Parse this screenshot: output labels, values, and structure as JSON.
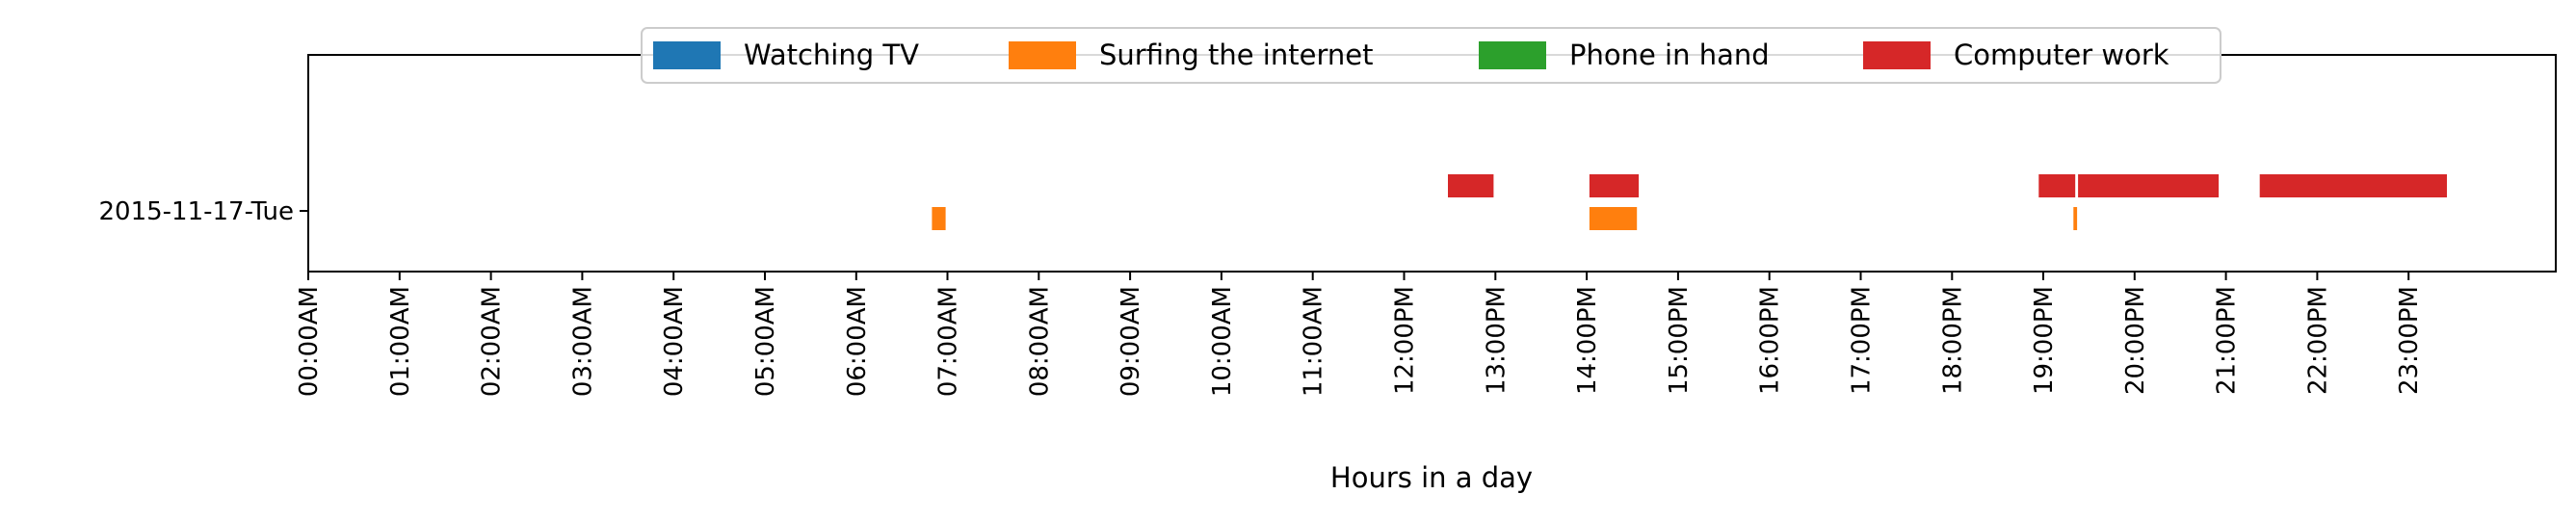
{
  "chart_data": {
    "type": "timeline",
    "title": "",
    "xlabel": "Hours in a day",
    "ylabel": "",
    "xlim": [
      0,
      24
    ],
    "grid": false,
    "legend_position": "top-center",
    "x_ticks": [
      "00:00AM",
      "01:00AM",
      "02:00AM",
      "03:00AM",
      "04:00AM",
      "05:00AM",
      "06:00AM",
      "07:00AM",
      "08:00AM",
      "09:00AM",
      "10:00AM",
      "11:00AM",
      "12:00PM",
      "13:00PM",
      "14:00PM",
      "15:00PM",
      "16:00PM",
      "17:00PM",
      "18:00PM",
      "19:00PM",
      "20:00PM",
      "21:00PM",
      "22:00PM",
      "23:00PM"
    ],
    "rows": [
      "2015-11-17-Tue"
    ],
    "series": [
      {
        "name": "Watching TV",
        "color": "#1f77b4",
        "intervals": []
      },
      {
        "name": "Surfing the internet",
        "color": "#ff7f0e",
        "intervals": [
          [
            6.83,
            6.98
          ],
          [
            14.03,
            14.55
          ],
          [
            19.33,
            19.37
          ]
        ]
      },
      {
        "name": "Phone in hand",
        "color": "#2ca02c",
        "intervals": []
      },
      {
        "name": "Computer work",
        "color": "#d62728",
        "intervals": [
          [
            12.48,
            12.98
          ],
          [
            14.03,
            14.57
          ],
          [
            18.95,
            19.35
          ],
          [
            19.38,
            20.92
          ],
          [
            21.37,
            23.42
          ]
        ]
      }
    ]
  }
}
